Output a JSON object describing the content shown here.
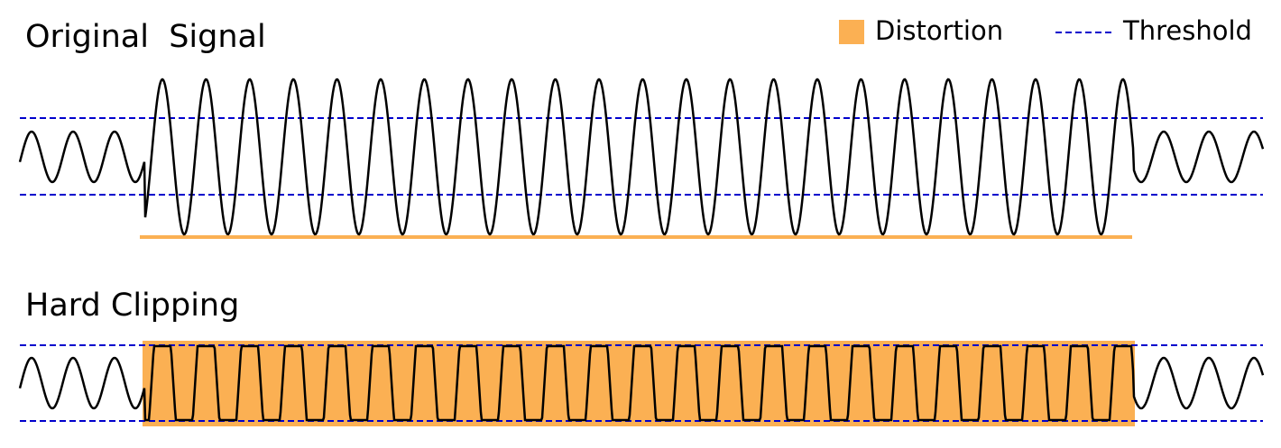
{
  "panels": [
    {
      "title": "Original  Signal"
    },
    {
      "title": "Hard Clipping"
    }
  ],
  "legend": {
    "items": [
      {
        "label": "Distortion"
      },
      {
        "label": "Threshold"
      }
    ]
  }
}
